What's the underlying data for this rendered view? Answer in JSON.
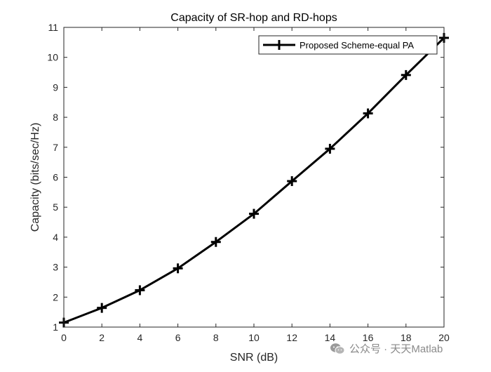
{
  "chart_data": {
    "type": "line",
    "title": "Capacity of SR-hop and RD-hops",
    "xlabel": "SNR (dB)",
    "ylabel": "Capacity (bits/sec/Hz)",
    "xlim": [
      0,
      20
    ],
    "ylim": [
      1,
      11
    ],
    "xticks": [
      0,
      2,
      4,
      6,
      8,
      10,
      12,
      14,
      16,
      18,
      20
    ],
    "yticks": [
      1,
      2,
      3,
      4,
      5,
      6,
      7,
      8,
      9,
      10,
      11
    ],
    "grid": false,
    "legend_position": "top-right",
    "series": [
      {
        "name": "Proposed Scheme-equal PA",
        "color": "#000000",
        "marker": "plus",
        "x": [
          0,
          2,
          4,
          6,
          8,
          10,
          12,
          14,
          16,
          18,
          20
        ],
        "y": [
          1.15,
          1.64,
          2.23,
          2.96,
          3.84,
          4.78,
          5.87,
          6.95,
          8.13,
          9.41,
          10.65
        ]
      }
    ]
  },
  "watermark": {
    "text": "公众号 · 天天Matlab",
    "icon": "wechat-icon"
  }
}
